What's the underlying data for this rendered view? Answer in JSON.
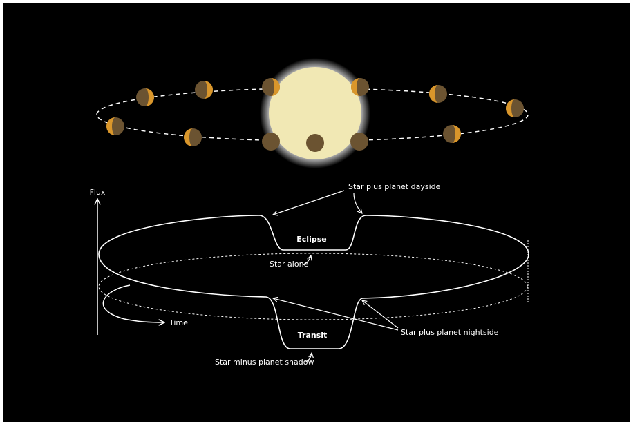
{
  "labels": {
    "flux": "Flux",
    "time": "Time",
    "dayside": "Star plus planet dayside",
    "eclipse": "Eclipse",
    "star_alone": "Star alone",
    "transit": "Transit",
    "shadow": "Star minus planet shadow",
    "nightside": "Star plus planet nightside"
  }
}
